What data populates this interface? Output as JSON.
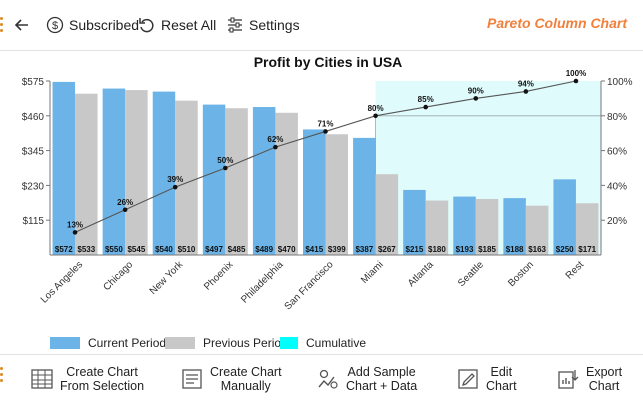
{
  "toolbar": {
    "back_label": "",
    "subscribed_label": "Subscribed",
    "reset_label": "Reset All",
    "settings_label": "Settings",
    "brand_label": "Pareto Column Chart"
  },
  "bottom_toolbar": {
    "create_from_selection": [
      "Create Chart",
      "From Selection"
    ],
    "create_manually": [
      "Create Chart",
      "Manually"
    ],
    "add_sample": [
      "Add Sample",
      "Chart + Data"
    ],
    "edit_chart": [
      "Edit",
      "Chart"
    ],
    "export_chart": [
      "Export",
      "Chart"
    ]
  },
  "colors": {
    "current": "#6cb4e8",
    "previous": "#c8c8c8",
    "cumulative_fill": "#e0fbfc",
    "cumulative_legend": "#00ffff",
    "brand": "#f0803c"
  },
  "chart_data": {
    "type": "bar",
    "title": "Profit by Cities in USA",
    "categories": [
      "Los Angeles",
      "Chicago",
      "New York",
      "Phoenix",
      "Philadelphia",
      "San Francisco",
      "Miami",
      "Atlanta",
      "Seattle",
      "Boston",
      "Rest"
    ],
    "series": [
      {
        "name": "Current Period",
        "values": [
          572,
          550,
          540,
          497,
          489,
          415,
          387,
          215,
          193,
          188,
          250
        ]
      },
      {
        "name": "Previous Period",
        "values": [
          533,
          545,
          510,
          485,
          470,
          399,
          267,
          180,
          185,
          163,
          171
        ]
      },
      {
        "name": "Cumulative",
        "values": [
          13,
          26,
          39,
          50,
          62,
          71,
          80,
          85,
          90,
          94,
          100
        ]
      }
    ],
    "current_labels": [
      "$572",
      "$550",
      "$540",
      "$497",
      "$489",
      "$415",
      "$387",
      "$215",
      "$193",
      "$188",
      "$250"
    ],
    "previous_labels": [
      "$533",
      "$545",
      "$510",
      "$485",
      "$470",
      "$399",
      "$267",
      "$180",
      "$185",
      "$163",
      "$171"
    ],
    "cumulative_labels": [
      "13%",
      "26%",
      "39%",
      "50%",
      "62%",
      "71%",
      "80%",
      "85%",
      "90%",
      "94%",
      "100%"
    ],
    "y_ticks": [
      "$115",
      "$230",
      "$345",
      "$460",
      "$575"
    ],
    "y_tick_values": [
      115,
      230,
      345,
      460,
      575
    ],
    "y2_ticks": [
      "20%",
      "40%",
      "60%",
      "80%",
      "100%"
    ],
    "y2_tick_values": [
      20,
      40,
      60,
      80,
      100
    ],
    "ylim": [
      0,
      575
    ],
    "y2lim": [
      0,
      100
    ],
    "threshold_percent": 80,
    "legend": [
      "Current Period",
      "Previous Period",
      "Cumulative"
    ],
    "legend_position": "bottom-left"
  }
}
